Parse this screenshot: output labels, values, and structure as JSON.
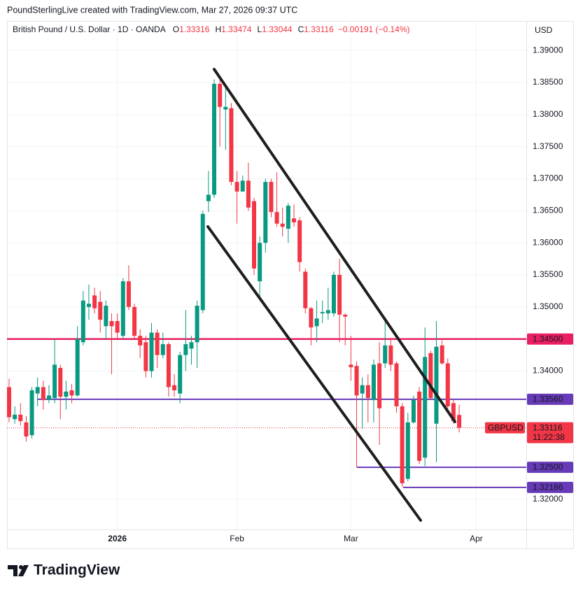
{
  "header": {
    "credit": "PoundSterlingLive created with TradingView.com, Mar 27, 2026 09:37 UTC"
  },
  "brand": "TradingView",
  "chart_data": {
    "type": "candlestick",
    "title": "British Pound / U.S. Dollar · 1D · OANDA",
    "legend": {
      "items": [
        {
          "key": "O",
          "value": "1.33316"
        },
        {
          "key": "H",
          "value": "1.33474"
        },
        {
          "key": "L",
          "value": "1.33044"
        },
        {
          "key": "C",
          "value": "1.33116"
        }
      ],
      "change": "−0.00191 (−0.14%)"
    },
    "currency": "USD",
    "categories": [
      null,
      null,
      null,
      null,
      null,
      null,
      null,
      null,
      null,
      null,
      null,
      null,
      null,
      null,
      null,
      null,
      null,
      null,
      null,
      "2026",
      null,
      null,
      null,
      null,
      null,
      null,
      null,
      null,
      null,
      null,
      null,
      null,
      null,
      null,
      null,
      null,
      null,
      null,
      null,
      null,
      "Feb",
      null,
      null,
      null,
      null,
      null,
      null,
      null,
      null,
      null,
      null,
      null,
      null,
      null,
      null,
      null,
      null,
      null,
      null,
      null,
      "Mar",
      null,
      null,
      null,
      null,
      null,
      null,
      null,
      null,
      null,
      null,
      null,
      null,
      null,
      null,
      null,
      null,
      null,
      null,
      null,
      null,
      null,
      "Apr",
      null,
      null,
      null,
      null,
      null,
      null,
      null,
      null
    ],
    "open": [
      1.3375,
      1.3325,
      1.3332,
      1.332,
      1.33,
      1.3365,
      1.3375,
      1.3355,
      1.3358,
      1.3405,
      1.336,
      1.337,
      1.3362,
      1.3445,
      1.35,
      1.3518,
      1.3508,
      1.347,
      1.3478,
      1.3478,
      1.3455,
      1.354,
      1.35,
      1.3455,
      1.3445,
      1.34,
      1.346,
      1.3425,
      1.3442,
      1.3378,
      1.3365,
      1.3425,
      1.3435,
      1.3445,
      1.3495,
      1.3665,
      1.3675,
      1.3848,
      1.3808,
      1.381,
      1.3695,
      1.368,
      1.3697,
      1.3665,
      1.354,
      1.36,
      1.3695,
      1.3648,
      1.363,
      1.3622,
      1.3638,
      1.3635,
      1.3555,
      1.3498,
      1.347,
      1.349,
      1.349,
      1.349,
      1.355,
      1.3488,
      1.341,
      1.3408,
      1.3365,
      1.3378,
      1.3355,
      1.3412,
      1.3412,
      1.344,
      1.3412,
      1.3345,
      1.3232,
      1.332,
      1.3368,
      1.3265,
      1.3428,
      1.3318,
      1.344,
      1.3412,
      1.335,
      1.33316,
      null,
      null,
      null,
      null,
      null,
      null,
      null,
      null,
      null,
      null,
      null
    ],
    "high": [
      1.3388,
      1.3345,
      1.335,
      1.333,
      1.3375,
      1.339,
      1.3385,
      1.3378,
      1.345,
      1.341,
      1.3385,
      1.338,
      1.347,
      1.3525,
      1.3535,
      1.353,
      1.3525,
      1.351,
      1.349,
      1.349,
      1.3545,
      1.3565,
      1.3505,
      1.3465,
      1.3455,
      1.3475,
      1.3465,
      1.346,
      1.3445,
      1.3395,
      1.343,
      1.3495,
      1.3455,
      1.351,
      1.365,
      1.3712,
      1.3855,
      1.3855,
      1.3845,
      1.3818,
      1.3712,
      1.3705,
      1.3725,
      1.367,
      1.361,
      1.37,
      1.37,
      1.371,
      1.3655,
      1.3662,
      1.366,
      1.364,
      1.356,
      1.35,
      1.351,
      1.351,
      1.353,
      1.3555,
      1.3575,
      1.349,
      1.3455,
      1.3415,
      1.339,
      1.3395,
      1.3418,
      1.3445,
      1.348,
      1.345,
      1.3415,
      1.335,
      1.3335,
      1.3362,
      1.3375,
      1.3468,
      1.3432,
      1.3478,
      1.3448,
      1.342,
      1.3355,
      1.33474,
      null,
      null,
      null,
      null,
      null,
      null,
      null,
      null,
      null,
      null,
      null
    ],
    "low": [
      1.332,
      1.3318,
      1.3315,
      1.329,
      1.3295,
      1.3345,
      1.334,
      1.335,
      1.335,
      1.3325,
      1.334,
      1.335,
      1.336,
      1.344,
      1.348,
      1.349,
      1.346,
      1.345,
      1.3395,
      1.345,
      1.345,
      1.3495,
      1.345,
      1.342,
      1.339,
      1.339,
      1.3405,
      1.342,
      1.336,
      1.336,
      1.335,
      1.34,
      1.341,
      1.3405,
      1.349,
      1.3648,
      1.367,
      1.375,
      1.3745,
      1.369,
      1.363,
      1.368,
      1.365,
      1.355,
      1.3515,
      1.3585,
      1.364,
      1.3625,
      1.361,
      1.36,
      1.3625,
      1.3555,
      1.349,
      1.344,
      1.3445,
      1.3475,
      1.348,
      1.3485,
      1.3445,
      1.344,
      1.3385,
      1.325,
      1.331,
      1.332,
      1.332,
      1.3285,
      1.3405,
      1.34,
      1.3335,
      1.3219,
      1.3228,
      1.3318,
      1.3255,
      1.3252,
      1.3355,
      1.3258,
      1.341,
      1.334,
      1.3318,
      1.33044,
      null,
      null,
      null,
      null,
      null,
      null,
      null,
      null,
      null,
      null,
      null
    ],
    "close": [
      1.3328,
      1.3332,
      1.3322,
      1.3298,
      1.337,
      1.3375,
      1.3355,
      1.3362,
      1.341,
      1.336,
      1.3368,
      1.3362,
      1.345,
      1.351,
      1.3505,
      1.3498,
      1.348,
      1.3502,
      1.347,
      1.346,
      1.354,
      1.35,
      1.3455,
      1.344,
      1.34,
      1.346,
      1.3425,
      1.3442,
      1.3375,
      1.337,
      1.3425,
      1.3442,
      1.3445,
      1.3502,
      1.3645,
      1.3675,
      1.3848,
      1.3812,
      1.3812,
      1.3695,
      1.368,
      1.3697,
      1.3655,
      1.356,
      1.36,
      1.3695,
      1.3648,
      1.363,
      1.3625,
      1.3658,
      1.3632,
      1.357,
      1.3498,
      1.3468,
      1.3482,
      1.3492,
      1.3495,
      1.355,
      1.3488,
      1.3485,
      1.3406,
      1.3362,
      1.3378,
      1.3358,
      1.341,
      1.3342,
      1.344,
      1.341,
      1.3345,
      1.3225,
      1.332,
      1.3355,
      1.326,
      1.3422,
      1.3358,
      1.3438,
      1.3412,
      1.3345,
      1.3322,
      1.33116,
      null,
      null,
      null,
      null,
      null,
      null,
      null,
      null,
      null,
      null,
      null
    ],
    "up_color": "#089981",
    "down_color": "#f23645",
    "ylim": [
      1.3153,
      1.3946
    ],
    "yticks": [
      {
        "value": 1.39,
        "label": "1.39000"
      },
      {
        "value": 1.385,
        "label": "1.38500"
      },
      {
        "value": 1.38,
        "label": "1.38000"
      },
      {
        "value": 1.375,
        "label": "1.37500"
      },
      {
        "value": 1.37,
        "label": "1.37000"
      },
      {
        "value": 1.365,
        "label": "1.36500"
      },
      {
        "value": 1.36,
        "label": "1.36000"
      },
      {
        "value": 1.355,
        "label": "1.35500"
      },
      {
        "value": 1.35,
        "label": "1.35000"
      },
      {
        "value": 1.345,
        "label": "1.34500"
      },
      {
        "value": 1.34,
        "label": "1.34000"
      },
      {
        "value": 1.32,
        "label": "1.32000"
      }
    ],
    "grid": true,
    "levels": [
      {
        "value": 1.345,
        "label": "1.34500",
        "color": "#e91e63"
      },
      {
        "value": 1.3356,
        "label": "1.33560",
        "color": "#673ab7"
      },
      {
        "value": 1.325,
        "label": "1.32500",
        "color": "#673ab7"
      },
      {
        "value": 1.32186,
        "label": "1.32186",
        "color": "#673ab7"
      }
    ],
    "last_price": {
      "symbol": "GBPUSD",
      "value": 1.33116,
      "label": "1.33116",
      "countdown": "11:22:38",
      "color": "#f23645"
    }
  }
}
